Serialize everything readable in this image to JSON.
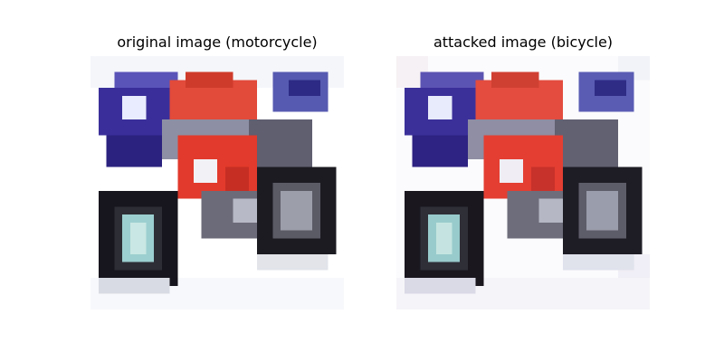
{
  "figure": {
    "panels": [
      {
        "title": "original image (motorcycle)",
        "image": "motorcycle-photo-pixelated"
      },
      {
        "title": "attacked image (bicycle)",
        "image": "motorcycle-photo-pixelated-perturbed"
      }
    ]
  }
}
